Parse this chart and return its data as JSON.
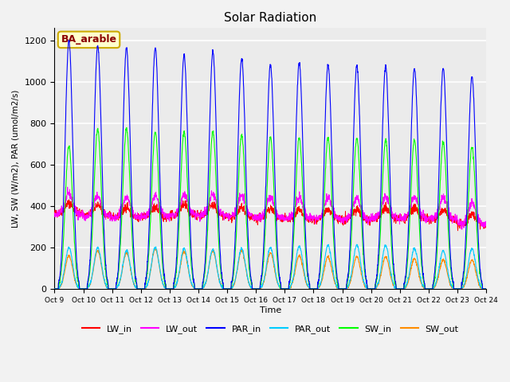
{
  "title": "Solar Radiation",
  "ylabel": "LW, SW (W/m2), PAR (umol/m2/s)",
  "xlabel": "Time",
  "annotation": "BA_arable",
  "annotation_color": "#8B0000",
  "annotation_bg": "#FFFFCC",
  "annotation_border": "#CCAA00",
  "ylim": [
    0,
    1260
  ],
  "yticks": [
    0,
    200,
    400,
    600,
    800,
    1000,
    1200
  ],
  "bg_color": "#EBEBEB",
  "grid_color": "#FFFFFF",
  "n_days": 15,
  "series_colors": {
    "LW_in": "#FF0000",
    "LW_out": "#FF00FF",
    "PAR_in": "#0000FF",
    "PAR_out": "#00CCFF",
    "SW_in": "#00FF00",
    "SW_out": "#FF8C00"
  },
  "tick_labels": [
    "Oct 9",
    "Oct 10",
    "Oct 11",
    "Oct 12",
    "Oct 13",
    "Oct 14",
    "Oct 15",
    "Oct 16",
    "Oct 17",
    "Oct 18",
    "Oct 19",
    "Oct 20",
    "Oct 21",
    "Oct 22",
    "Oct 23",
    "Oct 24"
  ],
  "PAR_in_peaks": [
    1200,
    1175,
    1165,
    1165,
    1130,
    1145,
    1115,
    1085,
    1090,
    1085,
    1080,
    1075,
    1065,
    1065,
    1025
  ],
  "PAR_out_peaks": [
    200,
    200,
    185,
    200,
    195,
    190,
    195,
    200,
    205,
    210,
    210,
    210,
    195,
    185,
    195
  ],
  "SW_in_peaks": [
    690,
    775,
    775,
    760,
    760,
    760,
    745,
    735,
    730,
    730,
    730,
    720,
    720,
    710,
    690
  ],
  "SW_out_peaks": [
    160,
    185,
    175,
    195,
    180,
    185,
    185,
    175,
    160,
    155,
    155,
    155,
    145,
    140,
    140
  ],
  "LW_in_base": [
    365,
    355,
    345,
    345,
    355,
    355,
    345,
    340,
    335,
    335,
    335,
    340,
    340,
    335,
    310
  ],
  "LW_out_base": [
    360,
    350,
    345,
    348,
    355,
    355,
    350,
    343,
    340,
    340,
    340,
    342,
    342,
    340,
    315
  ]
}
